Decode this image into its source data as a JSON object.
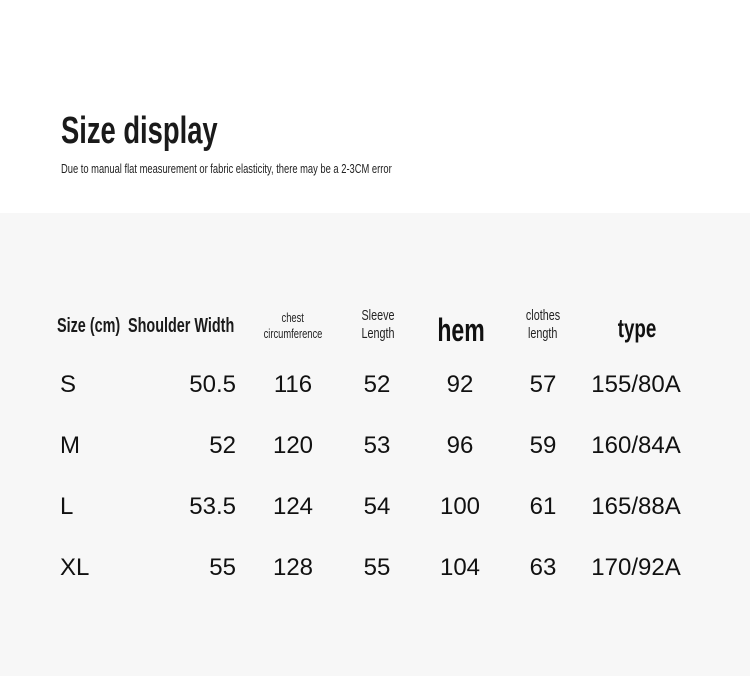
{
  "header": {
    "title": "Size display",
    "subtitle": "Due to manual flat measurement or fabric elasticity, there may be a 2-3CM error"
  },
  "table": {
    "columns": [
      "Size (cm)",
      "Shoulder Width",
      "chest circumference",
      "Sleeve Length",
      "hem",
      "clothes length",
      "type"
    ],
    "column_lines": {
      "chest": [
        "chest",
        "circumference"
      ],
      "sleeve": [
        "Sleeve",
        "Length"
      ],
      "clothes": [
        "clothes",
        "length"
      ]
    },
    "rows": [
      [
        "S",
        "50.5",
        "116",
        "52",
        "92",
        "57",
        "155/80A"
      ],
      [
        "M",
        "52",
        "120",
        "53",
        "96",
        "59",
        "160/84A"
      ],
      [
        "L",
        "53.5",
        "124",
        "54",
        "100",
        "61",
        "165/88A"
      ],
      [
        "XL",
        "55",
        "128",
        "55",
        "104",
        "63",
        "170/92A"
      ]
    ]
  }
}
